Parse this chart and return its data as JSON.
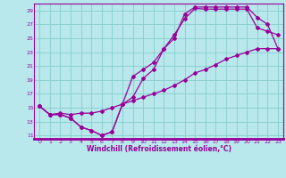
{
  "xlabel": "Windchill (Refroidissement éolien,°C)",
  "bg_color": "#b8e8ec",
  "grid_color": "#88cccc",
  "line_color": "#990099",
  "xlim": [
    -0.5,
    23.5
  ],
  "ylim": [
    10.5,
    30.0
  ],
  "xticks": [
    0,
    1,
    2,
    3,
    4,
    5,
    6,
    7,
    8,
    9,
    10,
    11,
    12,
    13,
    14,
    15,
    16,
    17,
    18,
    19,
    20,
    21,
    22,
    23
  ],
  "yticks": [
    11,
    13,
    15,
    17,
    19,
    21,
    23,
    25,
    27,
    29
  ],
  "line1_x": [
    0,
    1,
    2,
    3,
    4,
    5,
    6,
    7,
    8,
    9,
    10,
    11,
    12,
    13,
    14,
    15,
    16,
    17,
    18,
    19,
    20,
    21,
    22,
    23
  ],
  "line1_y": [
    15.2,
    14.0,
    14.0,
    13.5,
    12.2,
    11.7,
    11.0,
    11.5,
    15.5,
    16.5,
    19.2,
    20.5,
    23.5,
    25.5,
    27.8,
    29.3,
    29.2,
    29.2,
    29.2,
    29.2,
    29.2,
    26.5,
    26.0,
    25.5
  ],
  "line2_x": [
    0,
    1,
    2,
    3,
    4,
    5,
    6,
    7,
    8,
    9,
    10,
    11,
    12,
    13,
    14,
    15,
    16,
    17,
    18,
    19,
    20,
    21,
    22,
    23
  ],
  "line2_y": [
    15.2,
    14.0,
    14.0,
    13.5,
    12.2,
    11.7,
    11.0,
    11.5,
    15.5,
    19.5,
    20.5,
    21.5,
    23.5,
    25.0,
    28.5,
    29.5,
    29.5,
    29.5,
    29.5,
    29.5,
    29.5,
    28.0,
    27.0,
    23.5
  ],
  "line3_x": [
    0,
    1,
    2,
    3,
    4,
    5,
    6,
    7,
    8,
    9,
    10,
    11,
    12,
    13,
    14,
    15,
    16,
    17,
    18,
    19,
    20,
    21,
    22,
    23
  ],
  "line3_y": [
    15.2,
    14.0,
    14.2,
    14.0,
    14.2,
    14.2,
    14.5,
    15.0,
    15.5,
    16.0,
    16.5,
    17.0,
    17.5,
    18.2,
    19.0,
    20.0,
    20.5,
    21.2,
    22.0,
    22.5,
    23.0,
    23.5,
    23.5,
    23.5
  ]
}
